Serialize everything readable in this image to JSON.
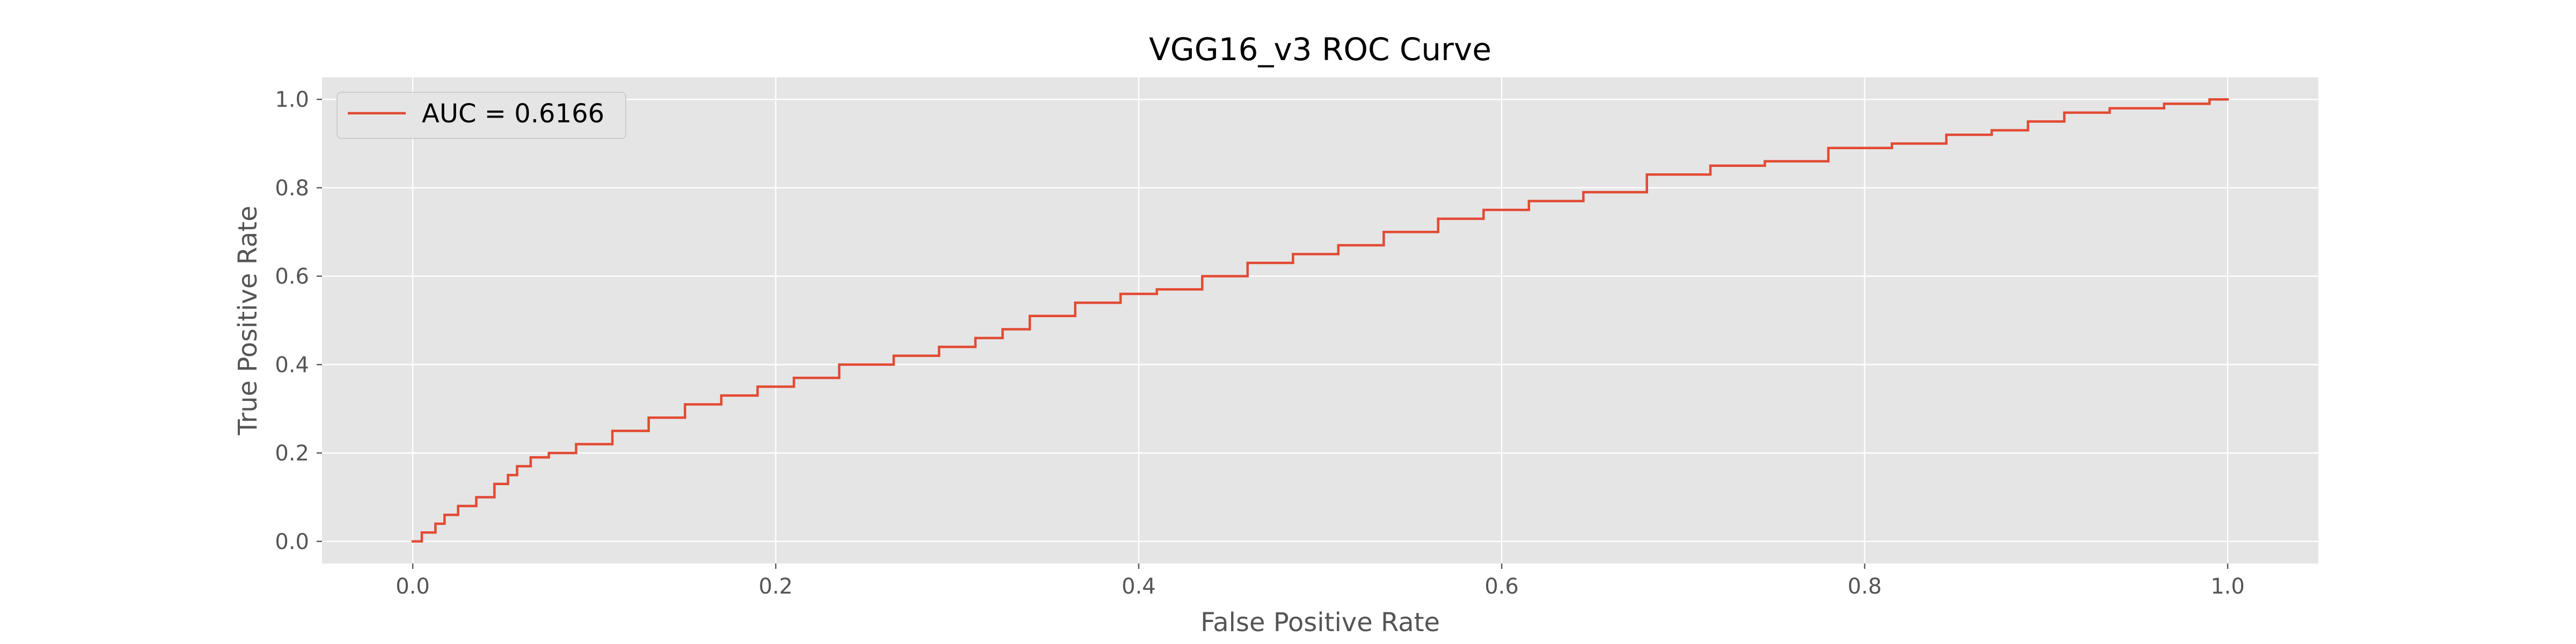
{
  "chart_data": {
    "type": "line",
    "title": "VGG16_v3 ROC Curve",
    "xlabel": "False Positive Rate",
    "ylabel": "True Positive Rate",
    "xlim": [
      -0.05,
      1.05
    ],
    "ylim": [
      -0.05,
      1.05
    ],
    "x_ticks": [
      0.0,
      0.2,
      0.4,
      0.6,
      0.8,
      1.0
    ],
    "x_tick_labels": [
      "0.0",
      "0.2",
      "0.4",
      "0.6",
      "0.8",
      "1.0"
    ],
    "y_ticks": [
      0.0,
      0.2,
      0.4,
      0.6,
      0.8,
      1.0
    ],
    "y_tick_labels": [
      "0.0",
      "0.2",
      "0.4",
      "0.6",
      "0.8",
      "1.0"
    ],
    "grid": true,
    "legend_position": "top-left",
    "colors": {
      "axes_background": "#e5e5e5",
      "grid": "#ffffff",
      "line": "#e24a33",
      "tick_label": "#555555",
      "axis_label": "#555555",
      "title": "#000000"
    },
    "series": [
      {
        "name": "AUC = 0.6166",
        "x": [
          0.0,
          0.01,
          0.015,
          0.02,
          0.03,
          0.04,
          0.05,
          0.055,
          0.06,
          0.07,
          0.08,
          0.1,
          0.12,
          0.14,
          0.16,
          0.18,
          0.2,
          0.22,
          0.25,
          0.28,
          0.3,
          0.32,
          0.33,
          0.35,
          0.38,
          0.4,
          0.42,
          0.45,
          0.47,
          0.5,
          0.52,
          0.55,
          0.58,
          0.6,
          0.63,
          0.66,
          0.7,
          0.73,
          0.76,
          0.8,
          0.83,
          0.86,
          0.88,
          0.9,
          0.92,
          0.95,
          0.98,
          1.0
        ],
        "y": [
          0.0,
          0.02,
          0.04,
          0.06,
          0.08,
          0.1,
          0.13,
          0.15,
          0.17,
          0.19,
          0.2,
          0.22,
          0.25,
          0.28,
          0.31,
          0.33,
          0.35,
          0.37,
          0.4,
          0.42,
          0.44,
          0.46,
          0.48,
          0.51,
          0.54,
          0.56,
          0.57,
          0.6,
          0.63,
          0.65,
          0.67,
          0.7,
          0.73,
          0.75,
          0.77,
          0.79,
          0.83,
          0.85,
          0.86,
          0.89,
          0.9,
          0.92,
          0.93,
          0.95,
          0.97,
          0.98,
          0.99,
          1.0
        ]
      }
    ]
  }
}
